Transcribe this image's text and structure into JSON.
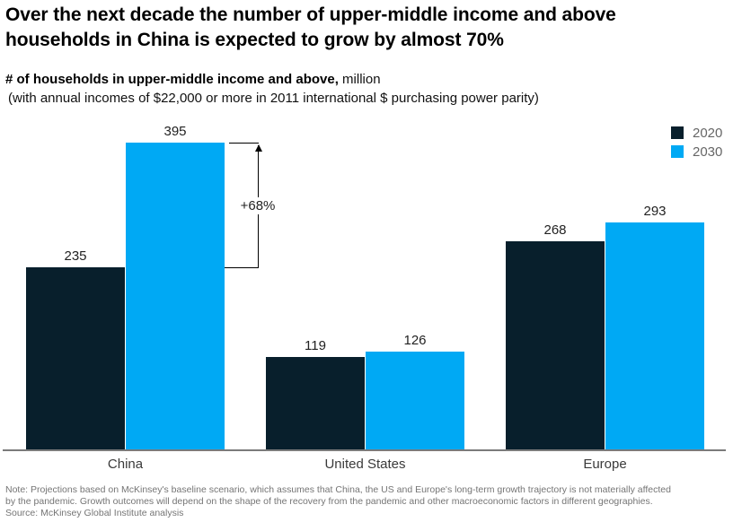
{
  "page": {
    "title_line1": "Over the next decade the number of upper-middle income and above",
    "title_line2": "households in China is expected to grow by almost 70%",
    "subtitle_bold": "# of households in upper-middle income and above,",
    "subtitle_regular": " million",
    "subtitle_line2": "(with annual incomes of $22,000 or more in 2011 international $ purchasing power parity)"
  },
  "legend": {
    "items": [
      {
        "label": "2020",
        "color": "#081F2C"
      },
      {
        "label": "2030",
        "color": "#00A9F4"
      }
    ]
  },
  "annotation": {
    "growth_label": "+68%"
  },
  "footer": {
    "note_line1": "Note: Projections based on McKinsey's baseline scenario, which assumes that China, the US and Europe's long-term growth trajectory is not materially affected",
    "note_line2": "by the pandemic. Growth outcomes will depend on the shape of the recovery from the pandemic and other macroeconomic factors in different geographies.",
    "source": "Source: McKinsey Global Institute analysis"
  },
  "chart_data": {
    "type": "bar",
    "title": "# of households in upper-middle income and above, million",
    "categories": [
      "China",
      "United States",
      "Europe"
    ],
    "series": [
      {
        "name": "2020",
        "color": "#081F2C",
        "values": [
          235,
          119,
          268
        ]
      },
      {
        "name": "2030",
        "color": "#00A9F4",
        "values": [
          395,
          126,
          293
        ]
      }
    ],
    "ylim": [
      0,
      400
    ],
    "grid": false,
    "axis_labels_shown": false,
    "legend_position": "top-right",
    "annotations": [
      {
        "text": "+68%",
        "category": "China",
        "from_series": "2020",
        "to_series": "2030"
      }
    ]
  }
}
